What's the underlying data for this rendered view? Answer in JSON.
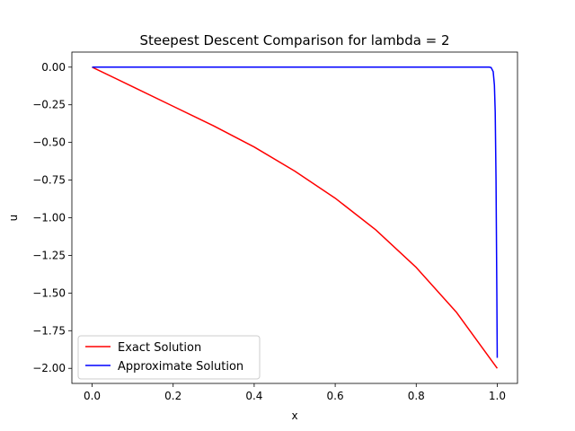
{
  "chart_data": {
    "type": "line",
    "title": "Steepest Descent Comparison for lambda = 2",
    "xlabel": "x",
    "ylabel": "u",
    "xlim": [
      -0.05,
      1.05
    ],
    "ylim": [
      -2.1,
      0.1
    ],
    "xticks": [
      0.0,
      0.2,
      0.4,
      0.6,
      0.8,
      1.0
    ],
    "xtick_labels": [
      "0.0",
      "0.2",
      "0.4",
      "0.6",
      "0.8",
      "1.0"
    ],
    "yticks": [
      0.0,
      -0.25,
      -0.5,
      -0.75,
      -1.0,
      -1.25,
      -1.5,
      -1.75,
      -2.0
    ],
    "ytick_labels": [
      "0.00",
      "−0.25",
      "−0.50",
      "−0.75",
      "−1.00",
      "−1.25",
      "−1.50",
      "−1.75",
      "−2.00"
    ],
    "grid": false,
    "legend_position": "lower-left",
    "series": [
      {
        "name": "Exact Solution",
        "color": "#ff0000",
        "x": [
          0.0,
          0.1,
          0.2,
          0.3,
          0.4,
          0.5,
          0.6,
          0.7,
          0.8,
          0.9,
          1.0
        ],
        "y": [
          0.0,
          -0.13,
          -0.26,
          -0.39,
          -0.53,
          -0.69,
          -0.87,
          -1.08,
          -1.33,
          -1.63,
          -2.0
        ]
      },
      {
        "name": "Approximate Solution",
        "color": "#0000ff",
        "x": [
          0.0,
          0.9,
          0.97,
          0.98,
          0.985,
          0.99,
          0.993,
          0.995,
          0.997,
          0.999,
          1.0
        ],
        "y": [
          0.0,
          0.0,
          0.0,
          0.0,
          -0.003,
          -0.03,
          -0.12,
          -0.3,
          -0.75,
          -1.5,
          -1.93
        ]
      }
    ]
  }
}
